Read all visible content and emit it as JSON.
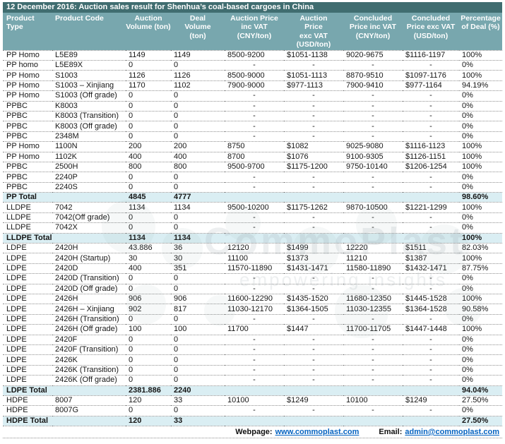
{
  "title": "12 December 2016: Auction sales result for Shenhua’s coal-based cargoes in China",
  "colors": {
    "title_bg": "#406d70",
    "header_bg": "#78a7ae",
    "total_bg": "#daeef3",
    "link": "#0563c1"
  },
  "table": {
    "columns": [
      {
        "id": "product-type",
        "label": "Product\nType"
      },
      {
        "id": "product-code",
        "label": "Product Code"
      },
      {
        "id": "auction-volume",
        "label": "Auction\nVolume (ton)"
      },
      {
        "id": "deal-volume",
        "label": "Deal\nVolume\n(ton)"
      },
      {
        "id": "auction-price-inc-vat",
        "label": "Auction Price\ninc VAT\n(CNY/ton)"
      },
      {
        "id": "auction-price-exc-vat",
        "label": "Auction\nPrice\nexc VAT\n(USD/ton)"
      },
      {
        "id": "concluded-price-inc-vat",
        "label": "Concluded\nPrice inc VAT\n(CNY/ton)"
      },
      {
        "id": "concluded-price-exc-vat",
        "label": "Concluded\nPrice exc VAT\n(USD/ton)"
      },
      {
        "id": "percentage-of-deal",
        "label": "Percentage\nof Deal (%)"
      }
    ],
    "rows": [
      {
        "cells": [
          "PP Homo",
          "L5E89",
          "1149",
          "1149",
          "8500-9200",
          "$1051-1138",
          "9020-9675",
          "$1116-1197",
          "100%"
        ],
        "total": false
      },
      {
        "cells": [
          "PP homo",
          "L5E89X",
          "0",
          "0",
          "-",
          "-",
          "-",
          "-",
          "0%"
        ],
        "total": false
      },
      {
        "cells": [
          "PP Homo",
          "S1003",
          "1126",
          "1126",
          "8500-9000",
          "$1051-1113",
          "8870-9510",
          "$1097-1176",
          "100%"
        ],
        "total": false
      },
      {
        "cells": [
          "PP Homo",
          "S1003 – Xinjiang",
          "1170",
          "1102",
          "7900-9000",
          "$977-1113",
          "7900-9410",
          "$977-1164",
          "94.19%"
        ],
        "total": false
      },
      {
        "cells": [
          "PP Homo",
          "S1003 (Off grade)",
          "0",
          "0",
          "-",
          "-",
          "-",
          "-",
          "0%"
        ],
        "total": false
      },
      {
        "cells": [
          "PPBC",
          "K8003",
          "0",
          "0",
          "-",
          "-",
          "-",
          "-",
          "0%"
        ],
        "total": false
      },
      {
        "cells": [
          "PPBC",
          "K8003 (Transition)",
          "0",
          "0",
          "-",
          "-",
          "-",
          "-",
          "0%"
        ],
        "total": false
      },
      {
        "cells": [
          "PPBC",
          "K8003 (Off grade)",
          "0",
          "0",
          "-",
          "-",
          "-",
          "-",
          "0%"
        ],
        "total": false
      },
      {
        "cells": [
          "PPBC",
          "2348M",
          "0",
          "0",
          "-",
          "-",
          "-",
          "-",
          "0%"
        ],
        "total": false
      },
      {
        "cells": [
          "PP Homo",
          "1100N",
          "200",
          "200",
          "8750",
          "$1082",
          "9025-9080",
          "$1116-1123",
          "100%"
        ],
        "total": false
      },
      {
        "cells": [
          "PP Homo",
          "1102K",
          "400",
          "400",
          "8700",
          "$1076",
          "9100-9305",
          "$1126-1151",
          "100%"
        ],
        "total": false
      },
      {
        "cells": [
          "PPBC",
          "2500H",
          "800",
          "800",
          "9500-9700",
          "$1175-1200",
          "9750-10140",
          "$1206-1254",
          "100%"
        ],
        "total": false
      },
      {
        "cells": [
          "PPBC",
          "2240P",
          "0",
          "0",
          "-",
          "-",
          "-",
          "-",
          "0%"
        ],
        "total": false
      },
      {
        "cells": [
          "PPBC",
          "2240S",
          "0",
          "0",
          "-",
          "-",
          "-",
          "-",
          "0%"
        ],
        "total": false
      },
      {
        "cells": [
          "PP Total",
          "",
          "4845",
          "4777",
          "",
          "",
          "",
          "",
          "98.60%"
        ],
        "total": true
      },
      {
        "cells": [
          "LLDPE",
          "7042",
          "1134",
          "1134",
          "9500-10200",
          "$1175-1262",
          "9870-10500",
          "$1221-1299",
          "100%"
        ],
        "total": false
      },
      {
        "cells": [
          "LLDPE",
          "7042(Off grade)",
          "0",
          "0",
          "-",
          "-",
          "-",
          "-",
          "0%"
        ],
        "total": false
      },
      {
        "cells": [
          "LLDPE",
          "7042X",
          "0",
          "0",
          "-",
          "-",
          "-",
          "-",
          "0%"
        ],
        "total": false
      },
      {
        "cells": [
          "LLDPE Total",
          "",
          "1134",
          "1134",
          "",
          "",
          "",
          "",
          "100%"
        ],
        "total": true
      },
      {
        "cells": [
          "LDPE",
          "2420H",
          "43.886",
          "36",
          "12120",
          "$1499",
          "12220",
          "$1511",
          "82.03%"
        ],
        "total": false
      },
      {
        "cells": [
          "LDPE",
          "2420H (Startup)",
          "30",
          "30",
          "11100",
          "$1373",
          "11210",
          "$1387",
          "100%"
        ],
        "total": false
      },
      {
        "cells": [
          "LDPE",
          "2420D",
          "400",
          "351",
          "11570-11890",
          "$1431-1471",
          "11580-11890",
          "$1432-1471",
          "87.75%"
        ],
        "total": false
      },
      {
        "cells": [
          "LDPE",
          "2420D (Transition)",
          "0",
          "0",
          "-",
          "-",
          "-",
          "-",
          "0%"
        ],
        "total": false
      },
      {
        "cells": [
          "LDPE",
          "2420D (Off grade)",
          "0",
          "0",
          "-",
          "-",
          "-",
          "-",
          "0%"
        ],
        "total": false
      },
      {
        "cells": [
          "LDPE",
          "2426H",
          "906",
          "906",
          "11600-12290",
          "$1435-1520",
          "11680-12350",
          "$1445-1528",
          "100%"
        ],
        "total": false
      },
      {
        "cells": [
          "LDPE",
          "2426H – Xinjiang",
          "902",
          "817",
          "11030-12170",
          "$1364-1505",
          "11030-12355",
          "$1364-1528",
          "90.58%"
        ],
        "total": false
      },
      {
        "cells": [
          "LDPE",
          "2426H (Transition)",
          "0",
          "0",
          "-",
          "-",
          "-",
          "-",
          "0%"
        ],
        "total": false
      },
      {
        "cells": [
          "LDPE",
          "2426H (Off grade)",
          "100",
          "100",
          "11700",
          "$1447",
          "11700-11705",
          "$1447-1448",
          "100%"
        ],
        "total": false
      },
      {
        "cells": [
          "LDPE",
          "2420F",
          "0",
          "0",
          "-",
          "-",
          "-",
          "-",
          "0%"
        ],
        "total": false
      },
      {
        "cells": [
          "LDPE",
          "2420F (Transition)",
          "0",
          "0",
          "-",
          "-",
          "-",
          "-",
          "0%"
        ],
        "total": false
      },
      {
        "cells": [
          "LDPE",
          "2426K",
          "0",
          "0",
          "-",
          "-",
          "-",
          "-",
          "0%"
        ],
        "total": false
      },
      {
        "cells": [
          "LDPE",
          "2426K (Transition)",
          "0",
          "0",
          "-",
          "-",
          "-",
          "-",
          "0%"
        ],
        "total": false
      },
      {
        "cells": [
          "LDPE",
          "2426K (Off grade)",
          "0",
          "0",
          "-",
          "-",
          "-",
          "-",
          "0%"
        ],
        "total": false
      },
      {
        "cells": [
          "LDPE Total",
          "",
          "2381.886",
          "2240",
          "",
          "",
          "",
          "",
          "94.04%"
        ],
        "total": true
      },
      {
        "cells": [
          "HDPE",
          "8007",
          "120",
          "33",
          "10100",
          "$1249",
          "10100",
          "$1249",
          "27.50%"
        ],
        "total": false
      },
      {
        "cells": [
          "HDPE",
          "8007G",
          "0",
          "0",
          "-",
          "-",
          "-",
          "-",
          "0%"
        ],
        "total": false
      },
      {
        "cells": [
          "HDPE Total",
          "",
          "120",
          "33",
          "",
          "",
          "",
          "",
          "27.50%"
        ],
        "total": true
      }
    ]
  },
  "footer": {
    "webpage_label": "Webpage:",
    "webpage_url": "www.commoplast.com",
    "email_label": "Email:",
    "email_address": "admin@commoplast.com"
  },
  "watermark": {
    "text": "CommoPlast",
    "subtext": "empowering insights"
  }
}
